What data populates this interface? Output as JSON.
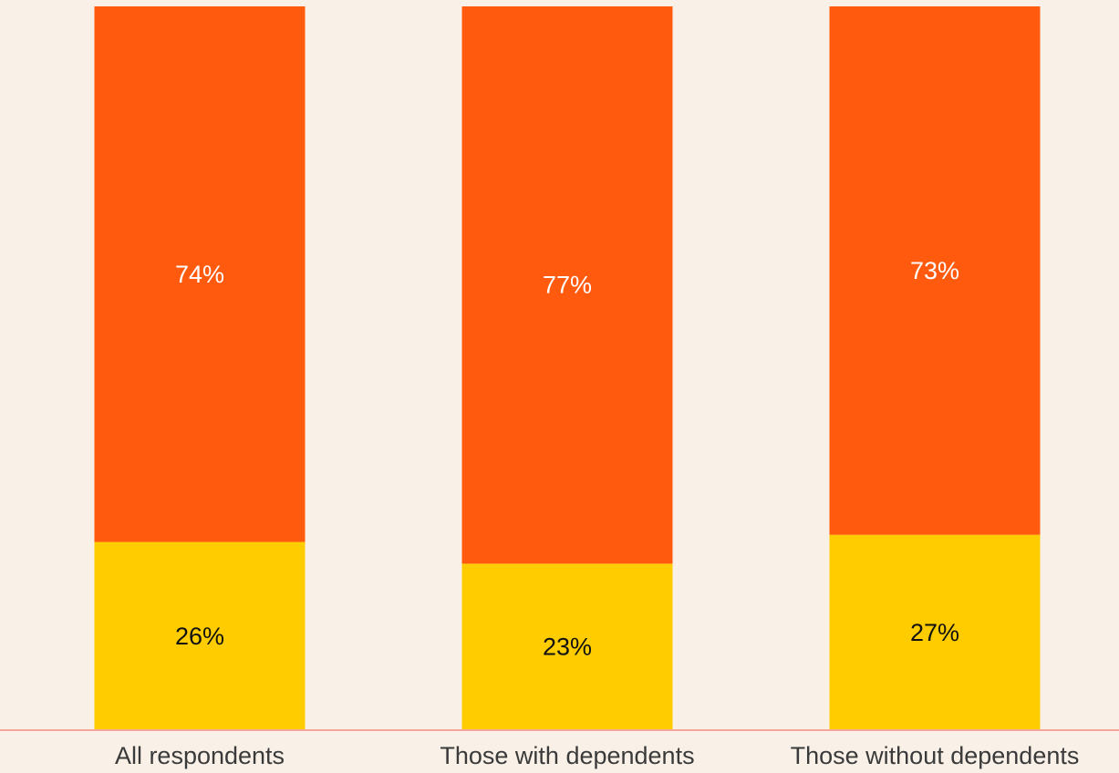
{
  "chart_data": {
    "type": "bar",
    "stacked": true,
    "categories": [
      "All respondents",
      "Those with dependents",
      "Those without dependents"
    ],
    "series": [
      {
        "values": [
          26,
          23,
          27
        ],
        "color": "#ffcc00",
        "label_color": "#111111"
      },
      {
        "values": [
          74,
          77,
          73
        ],
        "color": "#ff5a0e",
        "label_color": "#ffffff"
      }
    ],
    "data_labels": [
      [
        "26%",
        "23%",
        "27%"
      ],
      [
        "74%",
        "77%",
        "73%"
      ]
    ],
    "ylim": [
      0,
      100
    ],
    "grid": false,
    "legend": "none",
    "background": "#f9f1e7",
    "baseline_color": "#f3a79b"
  }
}
